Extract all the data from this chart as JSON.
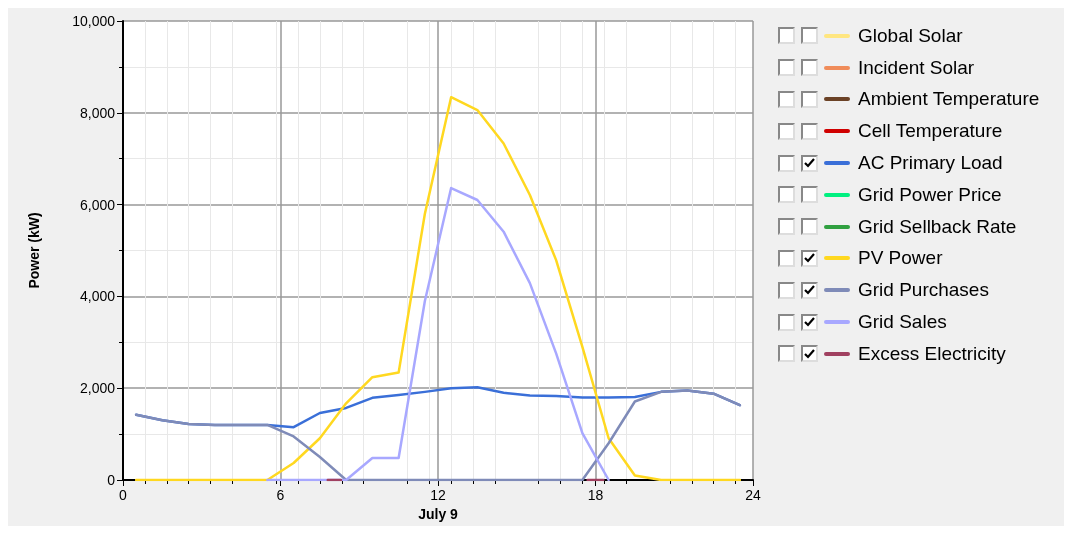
{
  "chart_data": {
    "type": "line",
    "xlabel": "July 9",
    "ylabel": "Power (kW)",
    "x": [
      0.5,
      1.5,
      2.5,
      3.5,
      4.5,
      5.5,
      6.5,
      7.5,
      8.5,
      9.5,
      10.5,
      11.5,
      12.5,
      13.5,
      14.5,
      15.5,
      16.5,
      17.5,
      18.5,
      19.5,
      20.5,
      21.5,
      22.5,
      23.5
    ],
    "xlim": [
      0,
      24
    ],
    "xticks": [
      0,
      6,
      12,
      18,
      24
    ],
    "ylim": [
      0,
      10000
    ],
    "yticks": [
      0,
      {
        "value": 2000,
        "label": "2,000"
      },
      {
        "value": 4000,
        "label": "4,000"
      },
      {
        "value": 6000,
        "label": "6,000"
      },
      {
        "value": 8000,
        "label": "8,000"
      },
      {
        "value": 10000,
        "label": "10,000"
      }
    ],
    "grid": true,
    "legend": "right",
    "marker": "none",
    "line_style": "solid",
    "series": [
      {
        "name": "Global Solar",
        "color": "#ffe680",
        "values": [
          null,
          null,
          null,
          null,
          null,
          null,
          null,
          null,
          null,
          null,
          null,
          null,
          null,
          null,
          null,
          null,
          null,
          null,
          null,
          null,
          null,
          null,
          null,
          null
        ]
      },
      {
        "name": "Incident Solar",
        "color": "#f08c5a",
        "values": [
          null,
          null,
          null,
          null,
          null,
          null,
          null,
          null,
          null,
          null,
          null,
          null,
          null,
          null,
          null,
          null,
          null,
          null,
          null,
          null,
          null,
          null,
          null,
          null
        ]
      },
      {
        "name": "Ambient Temperature",
        "color": "#6b4226",
        "values": [
          null,
          null,
          null,
          null,
          null,
          null,
          null,
          null,
          null,
          null,
          null,
          null,
          null,
          null,
          null,
          null,
          null,
          null,
          null,
          null,
          null,
          null,
          null,
          null
        ]
      },
      {
        "name": "Cell Temperature",
        "color": "#d00000",
        "values": [
          null,
          null,
          null,
          null,
          null,
          null,
          null,
          null,
          null,
          null,
          null,
          null,
          null,
          null,
          null,
          null,
          null,
          null,
          null,
          null,
          null,
          null,
          null,
          null
        ]
      },
      {
        "name": "AC Primary Load",
        "color": "#3a6fd8",
        "values": [
          1420,
          1300,
          1220,
          1200,
          1200,
          1200,
          1150,
          1460,
          1570,
          1790,
          1850,
          1920,
          2000,
          2020,
          1900,
          1840,
          1830,
          1800,
          1800,
          1810,
          1920,
          1950,
          1880,
          1630
        ]
      },
      {
        "name": "Grid Power Price",
        "color": "#00f080",
        "values": [
          null,
          null,
          null,
          null,
          null,
          null,
          null,
          null,
          null,
          null,
          null,
          null,
          null,
          null,
          null,
          null,
          null,
          null,
          null,
          null,
          null,
          null,
          null,
          null
        ]
      },
      {
        "name": "Grid Sellback Rate",
        "color": "#30a040",
        "values": [
          null,
          null,
          null,
          null,
          null,
          null,
          null,
          null,
          null,
          null,
          null,
          null,
          null,
          null,
          null,
          null,
          null,
          null,
          null,
          null,
          null,
          null,
          null,
          null
        ]
      },
      {
        "name": "PV Power",
        "color": "#ffd820",
        "values": [
          0,
          0,
          0,
          0,
          0,
          0,
          370,
          910,
          1670,
          2240,
          2340,
          5800,
          8340,
          8060,
          7330,
          6210,
          4790,
          2900,
          910,
          100,
          0,
          0,
          0,
          0
        ]
      },
      {
        "name": "Grid Purchases",
        "color": "#7f8bb8",
        "values": [
          1420,
          1300,
          1220,
          1200,
          1200,
          1200,
          950,
          500,
          0,
          0,
          0,
          0,
          0,
          0,
          0,
          0,
          0,
          0,
          800,
          1710,
          1920,
          1950,
          1880,
          1630
        ]
      },
      {
        "name": "Grid Sales",
        "color": "#a8a8ff",
        "values": [
          null,
          null,
          null,
          null,
          null,
          0,
          0,
          0,
          0,
          480,
          480,
          3900,
          6360,
          6100,
          5410,
          4290,
          2760,
          1020,
          0,
          null,
          null,
          null,
          null,
          null
        ]
      },
      {
        "name": "Excess Electricity",
        "color": "#a04060",
        "x": [
          7.8,
          8.3,
          13,
          17.7,
          18.3
        ],
        "values": [
          0,
          0,
          null,
          0,
          0
        ]
      }
    ]
  }
}
